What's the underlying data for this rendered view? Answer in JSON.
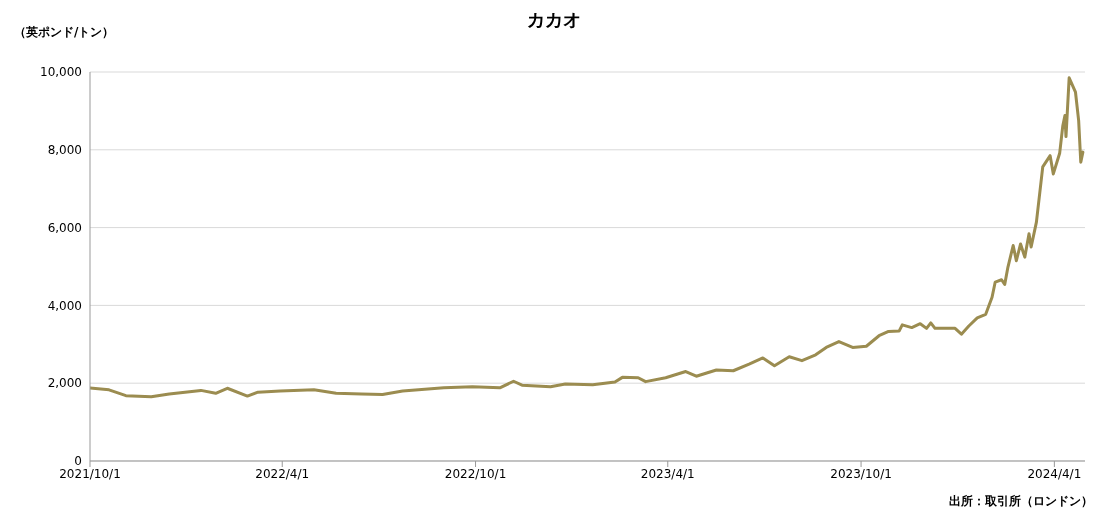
{
  "chart_data": {
    "type": "line",
    "title": "カカオ",
    "ylabel": "（英ポンド/トン）",
    "annotations": [
      "出所：取引所（ロンドン）"
    ],
    "x": [
      "2021-10-01",
      "2021-10-19",
      "2021-11-04",
      "2021-11-28",
      "2021-12-15",
      "2022-01-14",
      "2022-01-28",
      "2022-02-08",
      "2022-02-27",
      "2022-03-09",
      "2022-03-30",
      "2022-05-01",
      "2022-05-22",
      "2022-06-15",
      "2022-07-05",
      "2022-07-24",
      "2022-09-01",
      "2022-09-28",
      "2022-10-24",
      "2022-11-06",
      "2022-11-14",
      "2022-12-11",
      "2022-12-25",
      "2023-01-20",
      "2023-02-10",
      "2023-02-17",
      "2023-03-04",
      "2023-03-11",
      "2023-03-30",
      "2023-04-18",
      "2023-04-28",
      "2023-05-17",
      "2023-06-02",
      "2023-06-17",
      "2023-06-30",
      "2023-07-11",
      "2023-07-25",
      "2023-08-06",
      "2023-08-19",
      "2023-08-29",
      "2023-09-10",
      "2023-09-23",
      "2023-10-06",
      "2023-10-18",
      "2023-10-27",
      "2023-11-06",
      "2023-11-09",
      "2023-11-18",
      "2023-11-26",
      "2023-12-02",
      "2023-12-06",
      "2023-12-10",
      "2023-12-29",
      "2024-01-04",
      "2024-01-11",
      "2024-01-19",
      "2024-01-27",
      "2024-02-02",
      "2024-02-05",
      "2024-02-11",
      "2024-02-14",
      "2024-02-17",
      "2024-02-22",
      "2024-02-25",
      "2024-02-29",
      "2024-03-04",
      "2024-03-08",
      "2024-03-10",
      "2024-03-15",
      "2024-03-21",
      "2024-03-28",
      "2024-03-31",
      "2024-04-06",
      "2024-04-09",
      "2024-04-11",
      "2024-04-12",
      "2024-04-15",
      "2024-04-21",
      "2024-04-24",
      "2024-04-26",
      "2024-04-28"
    ],
    "series": [
      {
        "color": "#9b8c50",
        "values": [
          1880,
          1830,
          1680,
          1650,
          1720,
          1815,
          1740,
          1870,
          1670,
          1770,
          1800,
          1830,
          1740,
          1720,
          1710,
          1800,
          1880,
          1910,
          1880,
          2050,
          1950,
          1910,
          1980,
          1960,
          2030,
          2150,
          2140,
          2040,
          2140,
          2300,
          2180,
          2340,
          2320,
          2490,
          2650,
          2450,
          2680,
          2580,
          2730,
          2920,
          3070,
          2920,
          2950,
          3220,
          3330,
          3340,
          3500,
          3430,
          3530,
          3410,
          3550,
          3410,
          3410,
          3260,
          3470,
          3680,
          3770,
          4210,
          4600,
          4660,
          4540,
          4980,
          5540,
          5150,
          5580,
          5240,
          5840,
          5500,
          6140,
          7560,
          7850,
          7380,
          7910,
          8620,
          8880,
          8340,
          9850,
          9480,
          8750,
          7680,
          7940
        ]
      }
    ],
    "xlim": [
      "2021-10-01",
      "2024-04-30"
    ],
    "xticks": [
      {
        "value": "2021-10-01",
        "label": "2021/10/1"
      },
      {
        "value": "2022-04-01",
        "label": "2022/4/1"
      },
      {
        "value": "2022-10-01",
        "label": "2022/10/1"
      },
      {
        "value": "2023-04-01",
        "label": "2023/4/1"
      },
      {
        "value": "2023-10-01",
        "label": "2023/10/1"
      },
      {
        "value": "2024-04-01",
        "label": "2024/4/1"
      }
    ],
    "ylim": [
      0,
      10000
    ],
    "yticks": [
      0,
      {
        "value": 2000,
        "label": "2,000"
      },
      {
        "value": 4000,
        "label": "4,000"
      },
      {
        "value": 6000,
        "label": "6,000"
      },
      {
        "value": 8000,
        "label": "8,000"
      },
      {
        "value": 10000,
        "label": "10,000"
      }
    ],
    "grid": "y",
    "legend": false,
    "marker": "none",
    "line_style": "solid"
  }
}
